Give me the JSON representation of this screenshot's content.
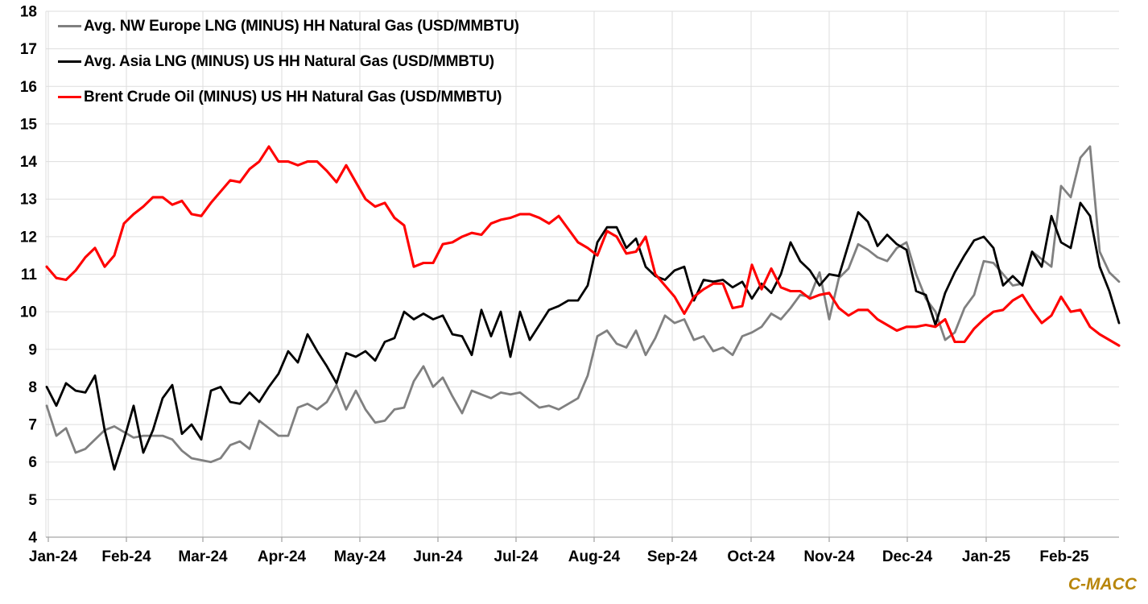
{
  "watermark": {
    "text": "C-MACC",
    "color": "#B8860B"
  },
  "chart_data": {
    "type": "line",
    "title": "",
    "xlabel": "",
    "ylabel": "",
    "grid": true,
    "legend_position": "top-left",
    "background": "#FFFFFF",
    "grid_color": "#DDDDDD",
    "axis_color": "#A6A6A6",
    "x_span": "Jan-2024 through early Mar-2025, points ~every 4 days",
    "y_axis": {
      "min": 4,
      "max": 18,
      "step": 1,
      "ticks": [
        18,
        17,
        16,
        15,
        14,
        13,
        12,
        11,
        10,
        9,
        8,
        7,
        6,
        5,
        4
      ]
    },
    "x_axis": {
      "labels": [
        "Jan-24",
        "Feb-24",
        "Mar-24",
        "Apr-24",
        "May-24",
        "Jun-24",
        "Jul-24",
        "Aug-24",
        "Sep-24",
        "Oct-24",
        "Nov-24",
        "Dec-24",
        "Jan-25",
        "Feb-25"
      ]
    },
    "series": [
      {
        "name": "Avg. NW Europe LNG (MINUS) HH Natural Gas (USD/MMBTU)",
        "color": "#808080",
        "values": [
          7.5,
          6.7,
          6.9,
          6.25,
          6.35,
          6.6,
          6.85,
          6.95,
          6.8,
          6.65,
          6.7,
          6.7,
          6.7,
          6.6,
          6.3,
          6.1,
          6.05,
          6.0,
          6.1,
          6.45,
          6.55,
          6.35,
          7.1,
          6.9,
          6.7,
          6.7,
          7.45,
          7.55,
          7.4,
          7.6,
          8.05,
          7.4,
          7.9,
          7.4,
          7.05,
          7.1,
          7.4,
          7.45,
          8.15,
          8.55,
          8.0,
          8.25,
          7.75,
          7.3,
          7.9,
          7.8,
          7.7,
          7.85,
          7.8,
          7.85,
          7.65,
          7.45,
          7.5,
          7.4,
          7.55,
          7.7,
          8.3,
          9.35,
          9.5,
          9.15,
          9.05,
          9.5,
          8.85,
          9.3,
          9.9,
          9.7,
          9.8,
          9.25,
          9.35,
          8.95,
          9.05,
          8.85,
          9.35,
          9.45,
          9.6,
          9.95,
          9.8,
          10.1,
          10.45,
          10.4,
          11.05,
          9.8,
          10.9,
          11.15,
          11.8,
          11.65,
          11.45,
          11.35,
          11.7,
          11.85,
          11.0,
          10.35,
          10.0,
          9.25,
          9.45,
          10.1,
          10.45,
          11.35,
          11.3,
          11.0,
          10.7,
          10.75,
          11.6,
          11.4,
          11.2,
          13.35,
          13.05,
          14.1,
          14.4,
          11.6,
          11.05,
          10.8
        ]
      },
      {
        "name": "Avg. Asia LNG (MINUS) US HH Natural Gas (USD/MMBTU)",
        "color": "#000000",
        "values": [
          8.0,
          7.5,
          8.1,
          7.9,
          7.85,
          8.3,
          6.85,
          5.8,
          6.6,
          7.5,
          6.25,
          6.85,
          7.7,
          8.05,
          6.75,
          7.0,
          6.6,
          7.9,
          8.0,
          7.6,
          7.55,
          7.85,
          7.6,
          8.0,
          8.35,
          8.95,
          8.65,
          9.4,
          8.95,
          8.55,
          8.1,
          8.9,
          8.8,
          8.95,
          8.7,
          9.2,
          9.3,
          10.0,
          9.8,
          9.95,
          9.8,
          9.9,
          9.4,
          9.35,
          8.85,
          10.05,
          9.35,
          10.0,
          8.8,
          10.0,
          9.25,
          9.65,
          10.05,
          10.15,
          10.3,
          10.3,
          10.7,
          11.85,
          12.25,
          12.25,
          11.7,
          11.95,
          11.2,
          10.95,
          10.85,
          11.1,
          11.2,
          10.3,
          10.85,
          10.8,
          10.85,
          10.65,
          10.8,
          10.35,
          10.75,
          10.5,
          11.0,
          11.85,
          11.35,
          11.1,
          10.7,
          11.0,
          10.95,
          11.8,
          12.65,
          12.4,
          11.75,
          12.05,
          11.8,
          11.65,
          10.55,
          10.45,
          9.65,
          10.5,
          11.05,
          11.5,
          11.9,
          12.0,
          11.7,
          10.7,
          10.95,
          10.7,
          11.6,
          11.2,
          12.55,
          11.85,
          11.7,
          12.9,
          12.55,
          11.2,
          10.55,
          9.7
        ]
      },
      {
        "name": "Brent Crude Oil (MINUS) US HH Natural Gas (USD/MMBTU)",
        "color": "#FF0000",
        "values": [
          11.2,
          10.9,
          10.85,
          11.1,
          11.45,
          11.7,
          11.2,
          11.5,
          12.35,
          12.6,
          12.8,
          13.05,
          13.05,
          12.85,
          12.95,
          12.6,
          12.55,
          12.9,
          13.2,
          13.5,
          13.45,
          13.8,
          14.0,
          14.4,
          14.0,
          14.0,
          13.9,
          14.0,
          14.0,
          13.75,
          13.45,
          13.9,
          13.45,
          13.0,
          12.8,
          12.9,
          12.5,
          12.3,
          11.2,
          11.3,
          11.3,
          11.8,
          11.85,
          12.0,
          12.1,
          12.05,
          12.35,
          12.45,
          12.5,
          12.6,
          12.6,
          12.5,
          12.35,
          12.55,
          12.2,
          11.85,
          11.7,
          11.5,
          12.15,
          12.0,
          11.55,
          11.6,
          12.0,
          11.0,
          10.7,
          10.4,
          9.95,
          10.4,
          10.6,
          10.75,
          10.75,
          10.1,
          10.15,
          11.25,
          10.6,
          11.15,
          10.65,
          10.55,
          10.55,
          10.35,
          10.45,
          10.5,
          10.1,
          9.9,
          10.05,
          10.05,
          9.8,
          9.65,
          9.5,
          9.6,
          9.6,
          9.65,
          9.6,
          9.8,
          9.2,
          9.2,
          9.55,
          9.8,
          10.0,
          10.05,
          10.3,
          10.45,
          10.05,
          9.7,
          9.9,
          10.4,
          10.0,
          10.05,
          9.6,
          9.4,
          9.25,
          9.1
        ]
      }
    ]
  }
}
